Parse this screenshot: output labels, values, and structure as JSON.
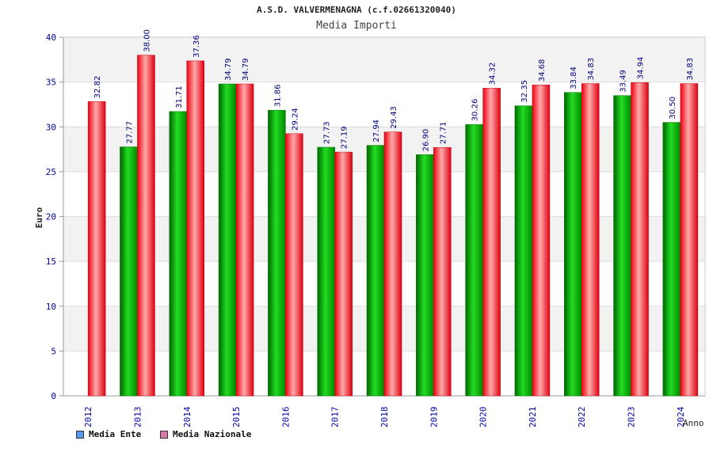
{
  "chart_data": {
    "type": "bar",
    "title": "A.S.D. VALVERMENAGNA (c.f.02661320040)",
    "subtitle": "Media Importi",
    "xlabel": "Anno",
    "ylabel": "Euro",
    "ylim": [
      0,
      40
    ],
    "yticks": [
      0,
      5,
      10,
      15,
      20,
      25,
      30,
      35,
      40
    ],
    "grid": true,
    "legend_position": "bottom-left",
    "categories": [
      "2012",
      "2013",
      "2014",
      "2015",
      "2016",
      "2017",
      "2018",
      "2019",
      "2020",
      "2021",
      "2022",
      "2023",
      "2024"
    ],
    "series": [
      {
        "name": "Media Ente",
        "color": "#00aa00",
        "legend_color": "#5599ee",
        "values": [
          null,
          27.77,
          31.71,
          34.79,
          31.86,
          27.73,
          27.94,
          26.9,
          30.26,
          32.35,
          33.84,
          33.49,
          30.5
        ],
        "labels": [
          "",
          "27.77",
          "31.71",
          "34.79",
          "31.86",
          "27.73",
          "27.94",
          "26.90",
          "30.26",
          "32.35",
          "33.84",
          "33.49",
          "30.50"
        ]
      },
      {
        "name": "Media Nazionale",
        "color": "#ee1122",
        "legend_color": "#dd77aa",
        "values": [
          32.82,
          38.0,
          37.36,
          34.79,
          29.24,
          27.19,
          29.43,
          27.71,
          34.32,
          34.68,
          34.83,
          34.94,
          34.83
        ],
        "labels": [
          "32.82",
          "38.00",
          "37.36",
          "34.79",
          "29.24",
          "27.19",
          "29.43",
          "27.71",
          "34.32",
          "34.68",
          "34.83",
          "34.94",
          "34.83"
        ]
      }
    ]
  }
}
